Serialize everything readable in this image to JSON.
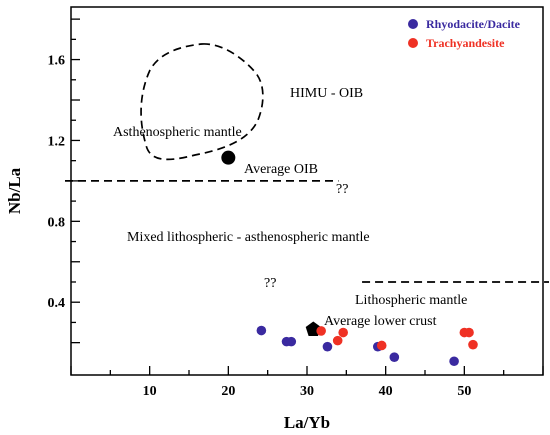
{
  "chart_data": {
    "type": "scatter",
    "xlabel": "La/Yb",
    "ylabel": "Nb/La",
    "xlim": [
      0,
      60
    ],
    "ylim": [
      0.04,
      1.86
    ],
    "x_ticks": [
      10,
      20,
      30,
      40,
      50
    ],
    "y_ticks": [
      0.4,
      0.8,
      1.2,
      1.6
    ],
    "grid": false,
    "legend_position": "top-right",
    "series": [
      {
        "name": "Rhodacite/Dacite",
        "color": "#3a2aa0",
        "points": [
          {
            "x": 24.2,
            "y": 0.26
          },
          {
            "x": 27.4,
            "y": 0.205
          },
          {
            "x": 28.0,
            "y": 0.205
          },
          {
            "x": 32.6,
            "y": 0.18
          },
          {
            "x": 39.0,
            "y": 0.18
          },
          {
            "x": 41.1,
            "y": 0.128
          },
          {
            "x": 48.7,
            "y": 0.108
          }
        ]
      },
      {
        "name": "Trachyandesite",
        "color": "#ef3124",
        "points": [
          {
            "x": 31.8,
            "y": 0.258
          },
          {
            "x": 33.9,
            "y": 0.21
          },
          {
            "x": 34.6,
            "y": 0.25
          },
          {
            "x": 39.5,
            "y": 0.186
          },
          {
            "x": 50.0,
            "y": 0.25
          },
          {
            "x": 50.6,
            "y": 0.25
          },
          {
            "x": 51.1,
            "y": 0.19
          }
        ]
      }
    ],
    "reference_points": [
      {
        "label": "Average OIB",
        "x": 20.0,
        "y": 1.115,
        "shape": "circle"
      },
      {
        "label": "Average lower crust",
        "x": 30.8,
        "y": 0.265,
        "shape": "pentagon"
      }
    ],
    "boundaries": [
      {
        "label": "??",
        "y": 1.0,
        "x_from": 0,
        "x_to": 34
      },
      {
        "label": "??",
        "y": 0.5,
        "x_from": 37,
        "x_to": 60
      }
    ],
    "annotations": [
      "HIMU - OIB",
      "Asthenospheric mantle",
      "Mixed lithospheric - asthenospheric mantle",
      "Lithospheric mantle"
    ],
    "legend_labels": [
      "Rhyodacite/Dacite",
      "Trachyandesite"
    ]
  }
}
